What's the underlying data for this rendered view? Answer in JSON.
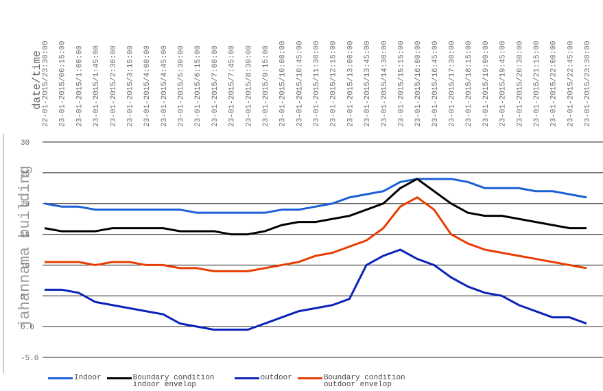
{
  "chart_data": {
    "type": "line",
    "x_label": "date/time",
    "y_label": "jahannama building",
    "categories": [
      "22-01-2015/23:30:00",
      "23-01-2015/00:15:00",
      "23-01-2015/1:00:00",
      "23-01-2015/1:45:00",
      "23-01-2015/2:30:00",
      "23-01-2015/3:15:00",
      "23-01-2015/4:00:00",
      "23-01-2015/4:45:00",
      "23-01-2015/5:30:00",
      "23-01-2015/6:15:00",
      "23-01-2015/7:00:00",
      "23-01-2015/7:45:00",
      "23-01-2015/8:30:00",
      "23-01-2015/9:15:00",
      "23-01-2015/10:00:00",
      "23-01-2015/10:45:00",
      "23-01-2015/11:30:00",
      "23-01-2015/12:15:00",
      "23-01-2015/13:00:00",
      "23-01-2015/13:45:00",
      "23-01-2015/14:30:00",
      "23-01-2015/15:15:00",
      "23-01-2015/16:00:00",
      "23-01-2015/16:45:00",
      "23-01-2015/17:30:00",
      "23-01-2015/18:15:00",
      "23-01-2015/19:00:00",
      "23-01-2015/19:45:00",
      "23-01-2015/20:30:00",
      "23-01-2015/21:15:00",
      "23-01-2015/22:00:00",
      "23-01-2015/22:45:00",
      "23-01-2015/23:30:00"
    ],
    "series": [
      {
        "name": "Indoor",
        "color": "#1a5fd6",
        "values": [
          20,
          19.5,
          19.5,
          19,
          19,
          19,
          19,
          19,
          19,
          18.5,
          18.5,
          18.5,
          18.5,
          18.5,
          19,
          19,
          19.5,
          20,
          21,
          21.5,
          22,
          23.5,
          24,
          24,
          24,
          23.5,
          22.5,
          22.5,
          22.5,
          22,
          22,
          21.5,
          21
        ]
      },
      {
        "name": "Boundary condition indoor envelop",
        "color": "#000000",
        "values": [
          16,
          15.5,
          15.5,
          15.5,
          16,
          16,
          16,
          16,
          15.5,
          15.5,
          15.5,
          15,
          15,
          15.5,
          16.5,
          17,
          17,
          17.5,
          18,
          19,
          20,
          22.5,
          24,
          22,
          20,
          18.5,
          18,
          18,
          17.5,
          17,
          16.5,
          16,
          16
        ]
      },
      {
        "name": "outdoor",
        "color": "#0a22b8",
        "values": [
          6,
          6,
          5.5,
          4,
          3.5,
          3,
          2.5,
          2,
          0.5,
          0,
          -0.5,
          -0.5,
          -0.5,
          0.5,
          1.5,
          2.5,
          3,
          3.5,
          4.5,
          10,
          11.5,
          12.5,
          11,
          10,
          8,
          6.5,
          5.5,
          5,
          3.5,
          2.5,
          1.5,
          1.5,
          0.5
        ]
      },
      {
        "name": "Boundary condition outdoor envelop",
        "color": "#e83c00",
        "values": [
          10.5,
          10.5,
          10.5,
          10,
          10.5,
          10.5,
          10,
          10,
          9.5,
          9.5,
          9,
          9,
          9,
          9.5,
          10,
          10.5,
          11.5,
          12,
          13,
          14,
          16,
          19.5,
          21,
          19,
          15,
          13.5,
          12.5,
          12,
          11.5,
          11,
          10.5,
          10,
          9.5
        ]
      }
    ],
    "ylim": [
      -5,
      30
    ],
    "yticks": [
      {
        "value": -5,
        "label": "-5.0"
      },
      {
        "value": 0,
        "label": "0.0"
      },
      5,
      10,
      15,
      20,
      25,
      30
    ],
    "grid": true
  }
}
